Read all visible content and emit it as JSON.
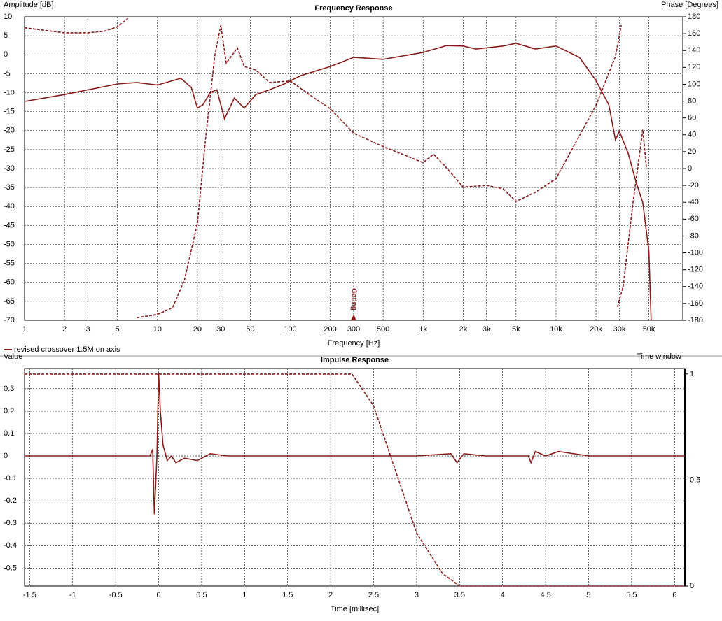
{
  "chart_data": [
    {
      "type": "line",
      "title": "Frequency Response",
      "ylabel": "Amplitude [dB]",
      "y2label": "Phase [Degrees]",
      "xlabel": "Frequency [Hz]",
      "xlog": true,
      "grid": true,
      "xlim": [
        1,
        90000
      ],
      "ylim": [
        -70,
        10
      ],
      "y2lim": [
        -180,
        180
      ],
      "xticks": [
        1,
        2,
        3,
        5,
        10,
        20,
        30,
        50,
        100,
        200,
        300,
        500,
        {
          "value": 1000,
          "label": "1k"
        },
        {
          "value": 2000,
          "label": "2k"
        },
        {
          "value": 3000,
          "label": "3k"
        },
        {
          "value": 5000,
          "label": "5k"
        },
        {
          "value": 10000,
          "label": "10k"
        },
        {
          "value": 20000,
          "label": "20k"
        },
        {
          "value": 30000,
          "label": "30k"
        },
        {
          "value": 50000,
          "label": "50k"
        }
      ],
      "yticks": [
        10,
        5,
        0,
        -5,
        -10,
        -15,
        -20,
        -25,
        -30,
        -35,
        -40,
        -45,
        -50,
        -55,
        -60,
        -65,
        -70
      ],
      "y2ticks": [
        180,
        160,
        140,
        120,
        100,
        80,
        60,
        40,
        20,
        0,
        -20,
        -40,
        -60,
        -80,
        -100,
        -120,
        -140,
        -160,
        -180
      ],
      "annotations": [
        {
          "text": "Gating",
          "x": 300
        }
      ],
      "series": [
        {
          "name": "revised crossover 1.5M on axis",
          "color": "#8b1a1a",
          "dash": false,
          "x": [
            1,
            2,
            5,
            7,
            10,
            15,
            18,
            20,
            22,
            25,
            28,
            32,
            38,
            45,
            55,
            70,
            90,
            120,
            200,
            300,
            500,
            1000,
            1500,
            2000,
            2500,
            4000,
            5000,
            7000,
            10000,
            15000,
            20000,
            25000,
            28000,
            30000,
            35000,
            40000,
            45000,
            50000,
            52000
          ],
          "values": [
            -12.3,
            -10.5,
            -7.7,
            -7.3,
            -8,
            -6.2,
            -8.6,
            -14.1,
            -13.2,
            -10,
            -9.2,
            -16.9,
            -11.4,
            -14.1,
            -10.5,
            -9.2,
            -7.7,
            -5.5,
            -3.1,
            -0.7,
            -1.2,
            0.6,
            2.4,
            2.3,
            1.5,
            2.3,
            3,
            1.5,
            2.3,
            -0.7,
            -6.8,
            -13.2,
            -22.4,
            -20.2,
            -26.1,
            -33.5,
            -39,
            -51.9,
            -70
          ]
        },
        {
          "color": "#8b1a1a",
          "dash": true,
          "axis": "y2",
          "x": [
            1,
            2,
            3,
            4,
            5,
            6,
            6.5,
            7,
            10,
            13,
            16,
            20,
            23,
            27,
            30,
            33,
            40,
            45,
            55,
            70,
            100,
            150,
            200,
            300,
            500,
            700,
            1000,
            1200,
            1500,
            2000,
            3000,
            4000,
            5000,
            7000,
            10000,
            20000,
            28000,
            31000,
            30000,
            29000,
            32000,
            38000,
            45000,
            48000
          ],
          "values": [
            167,
            161,
            161,
            163,
            168,
            178,
            null,
            -177,
            -173,
            -165,
            -132,
            -65,
            34,
            133,
            170,
            125,
            143,
            121,
            117,
            102,
            104,
            84,
            71,
            42,
            26,
            17,
            7,
            17,
            1,
            -22,
            -20,
            -24,
            -39,
            -28,
            -12,
            75,
            133,
            170,
            null,
            -164,
            -140,
            -40,
            46,
            0
          ]
        }
      ]
    },
    {
      "type": "line",
      "title": "Impulse Response",
      "ylabel": "Value",
      "y2label": "Time window",
      "xlabel": "Time [millisec]",
      "xlog": false,
      "grid": true,
      "xlim": [
        -1.56,
        6.12
      ],
      "ylim": [
        -0.58,
        0.39
      ],
      "y2lim": [
        0,
        1.026
      ],
      "xticks": [
        -1.5,
        -1,
        -0.5,
        0,
        0.5,
        1,
        1.5,
        2,
        2.5,
        3,
        3.5,
        4,
        4.5,
        5,
        5.5,
        6
      ],
      "yticks": [
        0.3,
        0.2,
        0.1,
        0,
        -0.1,
        -0.2,
        -0.3,
        -0.4,
        -0.5
      ],
      "y2ticks": [
        1,
        0.5,
        0
      ],
      "series": [
        {
          "color": "#8b1a1a",
          "dash": false,
          "x": [
            -1.56,
            -0.1,
            -0.07,
            -0.05,
            -0.02,
            0,
            0.02,
            0.05,
            0.1,
            0.15,
            0.2,
            0.3,
            0.45,
            0.6,
            0.8,
            1.5,
            3,
            3.4,
            3.47,
            3.55,
            3.8,
            4.3,
            4.33,
            4.38,
            4.5,
            4.65,
            5,
            6.12
          ],
          "values": [
            0,
            0,
            0.03,
            -0.26,
            0,
            0.37,
            0.2,
            0.05,
            -0.02,
            0,
            -0.03,
            -0.01,
            -0.02,
            0.01,
            0,
            0,
            0,
            0.01,
            -0.03,
            0.01,
            0,
            0,
            -0.03,
            0.02,
            0,
            0.02,
            0,
            0
          ]
        },
        {
          "color": "#8b1a1a",
          "dash": true,
          "axis": "y2",
          "x": [
            -1.56,
            2.25,
            2.5,
            2.75,
            3,
            3.3,
            3.5,
            6.12
          ],
          "values": [
            1,
            1,
            0.85,
            0.55,
            0.25,
            0.06,
            0,
            0
          ]
        }
      ]
    }
  ]
}
